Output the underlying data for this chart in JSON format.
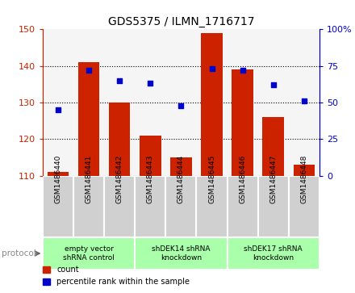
{
  "title": "GDS5375 / ILMN_1716717",
  "samples": [
    "GSM1486440",
    "GSM1486441",
    "GSM1486442",
    "GSM1486443",
    "GSM1486444",
    "GSM1486445",
    "GSM1486446",
    "GSM1486447",
    "GSM1486448"
  ],
  "counts": [
    111,
    141,
    130,
    121,
    115,
    149,
    139,
    126,
    113
  ],
  "percentiles": [
    45,
    72,
    65,
    63,
    48,
    73,
    72,
    62,
    51
  ],
  "bar_color": "#cc2200",
  "dot_color": "#0000cc",
  "left_ylim": [
    110,
    150
  ],
  "right_ylim": [
    0,
    100
  ],
  "left_yticks": [
    110,
    120,
    130,
    140,
    150
  ],
  "right_yticks": [
    0,
    25,
    50,
    75,
    100
  ],
  "right_yticklabels": [
    "0",
    "25",
    "50",
    "75",
    "100%"
  ],
  "groups": [
    {
      "label": "empty vector\nshRNA control",
      "start": 0,
      "end": 3
    },
    {
      "label": "shDEK14 shRNA\nknockdown",
      "start": 3,
      "end": 6
    },
    {
      "label": "shDEK17 shRNA\nknockdown",
      "start": 6,
      "end": 9
    }
  ],
  "bar_bottom": 110,
  "bar_width": 0.7,
  "sample_box_color": "#d0d0d0",
  "group_box_color": "#aaffaa",
  "plot_bg": "#f5f5f5"
}
